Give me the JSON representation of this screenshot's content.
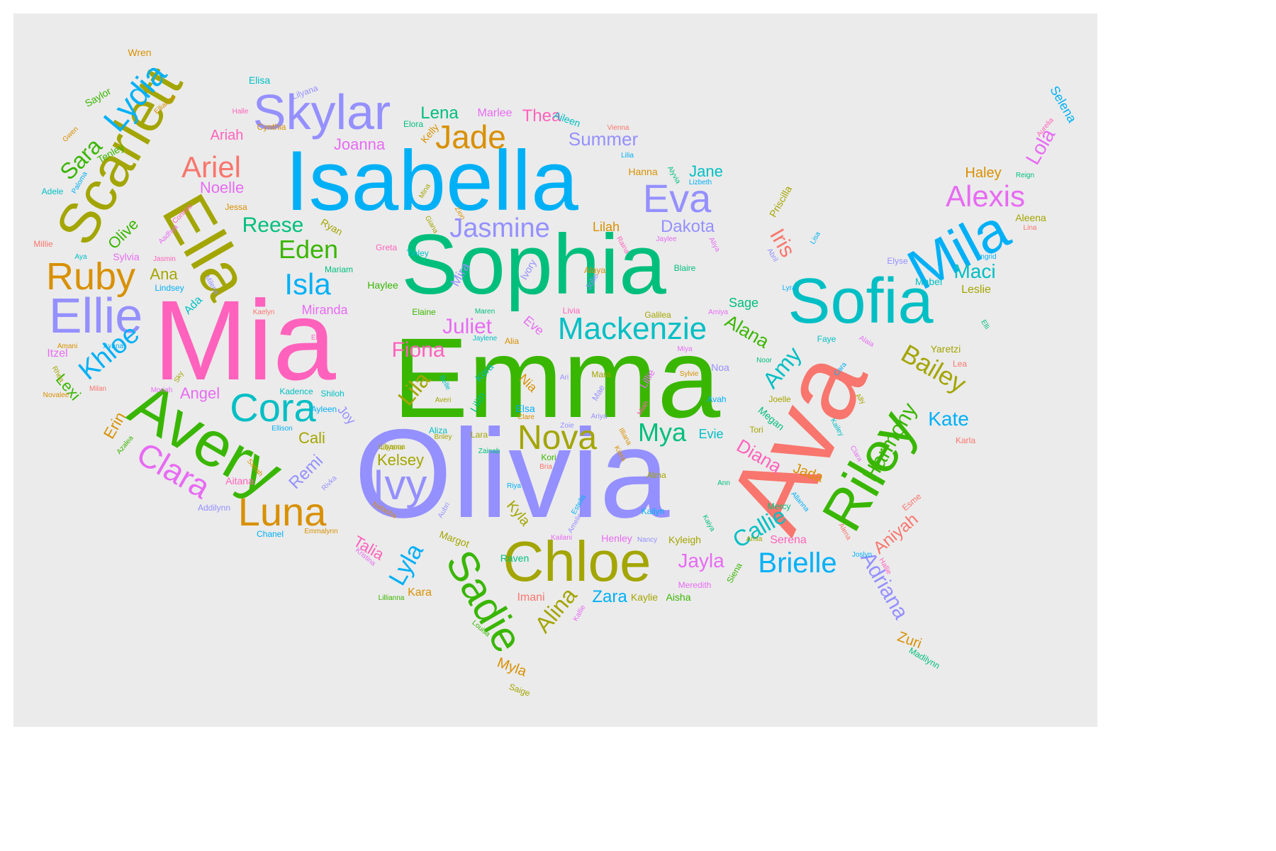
{
  "word_cloud": {
    "words": [
      {
        "t": "Olivia",
        "c": "#9590ff"
      },
      {
        "t": "Emma",
        "c": "#39b600"
      },
      {
        "t": "Mia",
        "c": "#ff62bc"
      },
      {
        "t": "Sophia",
        "c": "#00bf7d"
      },
      {
        "t": "Isabella",
        "c": "#00b0f6"
      },
      {
        "t": "Ava",
        "c": "#f8766d"
      },
      {
        "t": "Sofia",
        "c": "#00bfc4"
      },
      {
        "t": "Avery",
        "c": "#39b600"
      },
      {
        "t": "Chloe",
        "c": "#a3a500"
      },
      {
        "t": "Ella",
        "c": "#a3a500"
      },
      {
        "t": "Riley",
        "c": "#39b600"
      },
      {
        "t": "Mila",
        "c": "#00b0f6"
      },
      {
        "t": "Scarlett",
        "c": "#a3a500"
      },
      {
        "t": "Skylar",
        "c": "#9590ff"
      },
      {
        "t": "Ellie",
        "c": "#9590ff"
      },
      {
        "t": "Luna",
        "c": "#d89000"
      },
      {
        "t": "Sadie",
        "c": "#39b600"
      },
      {
        "t": "Cora",
        "c": "#00bfc4"
      },
      {
        "t": "Ivy",
        "c": "#9590ff"
      },
      {
        "t": "Nova",
        "c": "#a3a500"
      },
      {
        "t": "Mackenzie",
        "c": "#00bfc4"
      },
      {
        "t": "Jade",
        "c": "#d89000"
      },
      {
        "t": "Eva",
        "c": "#9590ff"
      },
      {
        "t": "Ruby",
        "c": "#d89000"
      },
      {
        "t": "Clara",
        "c": "#e76bf3"
      },
      {
        "t": "Lydia",
        "c": "#00b0f6"
      },
      {
        "t": "Alexis",
        "c": "#e76bf3"
      },
      {
        "t": "Jasmine",
        "c": "#9590ff"
      },
      {
        "t": "Brielle",
        "c": "#00b0f6"
      },
      {
        "t": "Bailey",
        "c": "#a3a500"
      },
      {
        "t": "Isla",
        "c": "#00b0f6"
      },
      {
        "t": "Khloe",
        "c": "#00b0f6"
      },
      {
        "t": "Ariel",
        "c": "#f8766d"
      },
      {
        "t": "Harmony",
        "c": "#39b600"
      },
      {
        "t": "Adriana",
        "c": "#9590ff"
      },
      {
        "t": "Alina",
        "c": "#a3a500"
      },
      {
        "t": "Eden",
        "c": "#39b600"
      },
      {
        "t": "Lyla",
        "c": "#00b0f6"
      },
      {
        "t": "Callie",
        "c": "#00bfc4"
      },
      {
        "t": "Amy",
        "c": "#00bfc4"
      },
      {
        "t": "Iris",
        "c": "#f8766d"
      },
      {
        "t": "Lila",
        "c": "#a3a500"
      },
      {
        "t": "Mya",
        "c": "#00bf7d"
      },
      {
        "t": "Sara",
        "c": "#39b600"
      },
      {
        "t": "Kate",
        "c": "#00b0f6"
      },
      {
        "t": "Fiona",
        "c": "#ff62bc"
      },
      {
        "t": "Juliet",
        "c": "#e76bf3"
      },
      {
        "t": "Reese",
        "c": "#00bf7d"
      },
      {
        "t": "Maci",
        "c": "#00bfc4"
      },
      {
        "t": "Jayla",
        "c": "#e76bf3"
      },
      {
        "t": "Diana",
        "c": "#ff62bc"
      },
      {
        "t": "Aniyah",
        "c": "#f8766d"
      },
      {
        "t": "Zara",
        "c": "#00b0f6"
      },
      {
        "t": "Lola",
        "c": "#e76bf3"
      },
      {
        "t": "Alana",
        "c": "#39b600"
      },
      {
        "t": "Dakota",
        "c": "#9590ff"
      },
      {
        "t": "Kelsey",
        "c": "#a3a500"
      },
      {
        "t": "Angel",
        "c": "#e76bf3"
      },
      {
        "t": "Cali",
        "c": "#a3a500"
      },
      {
        "t": "Remi",
        "c": "#9590ff"
      },
      {
        "t": "Summer",
        "c": "#9590ff"
      },
      {
        "t": "Lena",
        "c": "#00bf7d"
      },
      {
        "t": "Thea",
        "c": "#ff62bc"
      },
      {
        "t": "Jane",
        "c": "#00bfc4"
      },
      {
        "t": "Haley",
        "c": "#d89000"
      },
      {
        "t": "Joanna",
        "c": "#e76bf3"
      },
      {
        "t": "Noelle",
        "c": "#e76bf3"
      },
      {
        "t": "Ariah",
        "c": "#ff62bc"
      },
      {
        "t": "Olive",
        "c": "#39b600"
      },
      {
        "t": "Ana",
        "c": "#a3a500"
      },
      {
        "t": "Erin",
        "c": "#d89000"
      },
      {
        "t": "Lexi",
        "c": "#39b600"
      },
      {
        "t": "Miranda",
        "c": "#e76bf3"
      },
      {
        "t": "Talia",
        "c": "#ff62bc"
      },
      {
        "t": "Zuri",
        "c": "#d89000"
      },
      {
        "t": "Myla",
        "c": "#d89000"
      },
      {
        "t": "Kyla",
        "c": "#a3a500"
      },
      {
        "t": "Jada",
        "c": "#d89000"
      },
      {
        "t": "Serena",
        "c": "#ff62bc"
      },
      {
        "t": "Sage",
        "c": "#00bf7d"
      },
      {
        "t": "Leslie",
        "c": "#a3a500"
      },
      {
        "t": "Lilah",
        "c": "#d89000"
      },
      {
        "t": "Evie",
        "c": "#00bfc4"
      },
      {
        "t": "Joy",
        "c": "#9590ff"
      },
      {
        "t": "Nia",
        "c": "#d89000"
      },
      {
        "t": "Tenley",
        "c": "#39b600"
      },
      {
        "t": "Saylor",
        "c": "#39b600"
      },
      {
        "t": "Itzel",
        "c": "#e76bf3"
      },
      {
        "t": "Ada",
        "c": "#00bfc4"
      },
      {
        "t": "Mabel",
        "c": "#00bfc4"
      },
      {
        "t": "Yaretzi",
        "c": "#a3a500"
      },
      {
        "t": "Priscilla",
        "c": "#a3a500"
      },
      {
        "t": "Mira",
        "c": "#9590ff"
      },
      {
        "t": "Eve",
        "c": "#e76bf3"
      },
      {
        "t": "Elsa",
        "c": "#00b0f6"
      },
      {
        "t": "Aleena",
        "c": "#a3a500"
      },
      {
        "t": "Megan",
        "c": "#00bf7d"
      },
      {
        "t": "Margot",
        "c": "#a3a500"
      },
      {
        "t": "Raven",
        "c": "#00bf7d"
      },
      {
        "t": "Aitana",
        "c": "#ff62bc"
      },
      {
        "t": "Kaylie",
        "c": "#a3a500"
      },
      {
        "t": "Aisha",
        "c": "#39b600"
      },
      {
        "t": "Imani",
        "c": "#f8766d"
      },
      {
        "t": "Kara",
        "c": "#d89000"
      },
      {
        "t": "Kyleigh",
        "c": "#a3a500"
      },
      {
        "t": "Henley",
        "c": "#e76bf3"
      },
      {
        "t": "Meredith",
        "c": "#e76bf3"
      },
      {
        "t": "Siena",
        "c": "#39b600"
      },
      {
        "t": "Lilith",
        "c": "#00bf7d"
      },
      {
        "t": "Kora",
        "c": "#00bfc4"
      },
      {
        "t": "Aliza",
        "c": "#00bfc4"
      },
      {
        "t": "Shiloh",
        "c": "#00bfc4"
      },
      {
        "t": "Karla",
        "c": "#f8766d"
      },
      {
        "t": "Esme",
        "c": "#f8766d"
      },
      {
        "t": "Madilynn",
        "c": "#00bf7d"
      },
      {
        "t": "Elisa",
        "c": "#00bfc4"
      },
      {
        "t": "Wren",
        "c": "#d89000"
      },
      {
        "t": "Marlee",
        "c": "#e76bf3"
      },
      {
        "t": "Aileen",
        "c": "#00bfc4"
      },
      {
        "t": "Hanna",
        "c": "#d89000"
      },
      {
        "t": "Jessa",
        "c": "#d89000"
      },
      {
        "t": "Ryan",
        "c": "#a3a500"
      },
      {
        "t": "Mariam",
        "c": "#00bf7d"
      },
      {
        "t": "Haylee",
        "c": "#39b600"
      },
      {
        "t": "Elaine",
        "c": "#39b600"
      },
      {
        "t": "Greta",
        "c": "#ff62bc"
      },
      {
        "t": "Tinley",
        "c": "#00bfc4"
      },
      {
        "t": "Ivory",
        "c": "#9590ff"
      },
      {
        "t": "Jolie",
        "c": "#9590ff"
      },
      {
        "t": "Livia",
        "c": "#ff62bc"
      },
      {
        "t": "Galilea",
        "c": "#a3a500"
      },
      {
        "t": "Alia",
        "c": "#d89000"
      },
      {
        "t": "Millie",
        "c": "#f8766d"
      },
      {
        "t": "Sylvia",
        "c": "#e76bf3"
      },
      {
        "t": "Adele",
        "c": "#00bfc4"
      },
      {
        "t": "Cynthia",
        "c": "#d89000"
      },
      {
        "t": "Kadence",
        "c": "#00bfc4"
      },
      {
        "t": "Ayleen",
        "c": "#00b0f6"
      },
      {
        "t": "Mara",
        "c": "#a3a500"
      },
      {
        "t": "Mae",
        "c": "#9590ff"
      },
      {
        "t": "Lillie",
        "c": "#e76bf3"
      },
      {
        "t": "Noa",
        "c": "#9590ff"
      },
      {
        "t": "Avah",
        "c": "#00b0f6"
      },
      {
        "t": "Tori",
        "c": "#a3a500"
      },
      {
        "t": "Joelle",
        "c": "#a3a500"
      },
      {
        "t": "Lara",
        "c": "#a3a500"
      },
      {
        "t": "Kori",
        "c": "#39b600"
      },
      {
        "t": "Alma",
        "c": "#a3a500"
      },
      {
        "t": "Kailyn",
        "c": "#00b0f6"
      },
      {
        "t": "Mercy",
        "c": "#00bf7d"
      },
      {
        "t": "Nancy",
        "c": "#9590ff"
      },
      {
        "t": "Kailani",
        "c": "#e76bf3"
      },
      {
        "t": "Amia",
        "c": "#a3a500"
      },
      {
        "t": "Lilyana",
        "c": "#a3a500"
      },
      {
        "t": "Chanel",
        "c": "#00b0f6"
      },
      {
        "t": "Addilynn",
        "c": "#9590ff"
      },
      {
        "t": "Noor",
        "c": "#00bf7d"
      },
      {
        "t": "Faye",
        "c": "#00bfc4"
      },
      {
        "t": "Lea",
        "c": "#f8766d"
      },
      {
        "t": "Elyse",
        "c": "#9590ff"
      },
      {
        "t": "Lyra",
        "c": "#00b0f6"
      },
      {
        "t": "Lisa",
        "c": "#00b0f6"
      },
      {
        "t": "Selena",
        "c": "#00b0f6"
      },
      {
        "t": "Aurelia",
        "c": "#ff62bc"
      },
      {
        "t": "Reign",
        "c": "#00bf7d"
      },
      {
        "t": "Lina",
        "c": "#f8766d"
      },
      {
        "t": "Ingrid",
        "c": "#00b0f6"
      },
      {
        "t": "Elli",
        "c": "#00bf7d"
      },
      {
        "t": "Alaia",
        "c": "#e76bf3"
      },
      {
        "t": "Kailey",
        "c": "#00bfc4"
      },
      {
        "t": "Clara",
        "c": "#e76bf3"
      },
      {
        "t": "Cara",
        "c": "#00b0f6"
      },
      {
        "t": "Ally",
        "c": "#a3a500"
      },
      {
        "t": "Alena",
        "c": "#f8766d"
      },
      {
        "t": "Hallie",
        "c": "#ff62bc"
      },
      {
        "t": "Joslyn",
        "c": "#00b0f6"
      },
      {
        "t": "Ann",
        "c": "#00bf7d"
      },
      {
        "t": "Kaiya",
        "c": "#00bf7d"
      },
      {
        "t": "Allanna",
        "c": "#00b0f6"
      },
      {
        "t": "Kiera",
        "c": "#d89000"
      },
      {
        "t": "Illiana",
        "c": "#d89000"
      },
      {
        "t": "Riya",
        "c": "#00b0f6"
      },
      {
        "t": "Estella",
        "c": "#00b0f6"
      },
      {
        "t": "Amelie",
        "c": "#9590ff"
      },
      {
        "t": "Zoie",
        "c": "#9590ff"
      },
      {
        "t": "Ari",
        "c": "#9590ff"
      },
      {
        "t": "Ariya",
        "c": "#9590ff"
      },
      {
        "t": "Miah",
        "c": "#ff62bc"
      },
      {
        "t": "Sylvie",
        "c": "#d89000"
      },
      {
        "t": "Miya",
        "c": "#e76bf3"
      },
      {
        "t": "Kaelyn",
        "c": "#f8766d"
      },
      {
        "t": "Ellis",
        "c": "#ff62bc"
      },
      {
        "t": "Amani",
        "c": "#d89000"
      },
      {
        "t": "Ayana",
        "c": "#00b0f6"
      },
      {
        "t": "Rhea",
        "c": "#a3a500"
      },
      {
        "t": "Milan",
        "c": "#f8766d"
      },
      {
        "t": "Moriah",
        "c": "#e76bf3"
      },
      {
        "t": "Sky",
        "c": "#a3a500"
      },
      {
        "t": "Novalee",
        "c": "#d89000"
      },
      {
        "t": "Ellison",
        "c": "#00b0f6"
      },
      {
        "t": "Azalea",
        "c": "#39b600"
      },
      {
        "t": "Sariah",
        "c": "#d89000"
      },
      {
        "t": "Rivka",
        "c": "#9590ff"
      },
      {
        "t": "Natasha",
        "c": "#d89000"
      },
      {
        "t": "Emmalynn",
        "c": "#d89000"
      },
      {
        "t": "Aubri",
        "c": "#9590ff"
      },
      {
        "t": "Lillianna",
        "c": "#39b600"
      },
      {
        "t": "Kristina",
        "c": "#e76bf3"
      },
      {
        "t": "Louisa",
        "c": "#39b600"
      },
      {
        "t": "Kallie",
        "c": "#e76bf3"
      },
      {
        "t": "Saige",
        "c": "#a3a500"
      },
      {
        "t": "Lilyanna",
        "c": "#a3a500"
      },
      {
        "t": "Zainab",
        "c": "#00bf7d"
      },
      {
        "t": "Bria",
        "c": "#f8766d"
      },
      {
        "t": "Briley",
        "c": "#a3a500"
      },
      {
        "t": "Averi",
        "c": "#a3a500"
      },
      {
        "t": "Clare",
        "c": "#d89000"
      },
      {
        "t": "Belle",
        "c": "#00bfc4"
      },
      {
        "t": "Maren",
        "c": "#00bf7d"
      },
      {
        "t": "Jaylene",
        "c": "#00bfc4"
      },
      {
        "t": "Alaya",
        "c": "#d89000"
      },
      {
        "t": "Blaire",
        "c": "#00bf7d"
      },
      {
        "t": "Aliya",
        "c": "#e76bf3"
      },
      {
        "t": "Amiya",
        "c": "#e76bf3"
      },
      {
        "t": "Jaylee",
        "c": "#e76bf3"
      },
      {
        "t": "Abril",
        "c": "#9590ff"
      },
      {
        "t": "Raina",
        "c": "#ff62bc"
      },
      {
        "t": "Zion",
        "c": "#d89000"
      },
      {
        "t": "Giana",
        "c": "#a3a500"
      },
      {
        "t": "Mina",
        "c": "#a3a500"
      },
      {
        "t": "Elora",
        "c": "#00bf7d"
      },
      {
        "t": "Kelly",
        "c": "#d89000"
      },
      {
        "t": "Lilyana",
        "c": "#9590ff"
      },
      {
        "t": "Ellianna",
        "c": "#d89000"
      },
      {
        "t": "Halle",
        "c": "#ff62bc"
      },
      {
        "t": "Gwen",
        "c": "#d89000"
      },
      {
        "t": "Paloma",
        "c": "#00b0f6"
      },
      {
        "t": "Corinne",
        "c": "#ff62bc"
      },
      {
        "t": "Aadhya",
        "c": "#e76bf3"
      },
      {
        "t": "Aya",
        "c": "#00bfc4"
      },
      {
        "t": "Jasmin",
        "c": "#ff62bc"
      },
      {
        "t": "Lindsey",
        "c": "#00b0f6"
      },
      {
        "t": "Milena",
        "c": "#9590ff"
      },
      {
        "t": "Vienna",
        "c": "#f8766d"
      },
      {
        "t": "Lilia",
        "c": "#00b0f6"
      },
      {
        "t": "Alyvia",
        "c": "#00bf7d"
      },
      {
        "t": "Lizbeth",
        "c": "#00b0f6"
      }
    ]
  }
}
